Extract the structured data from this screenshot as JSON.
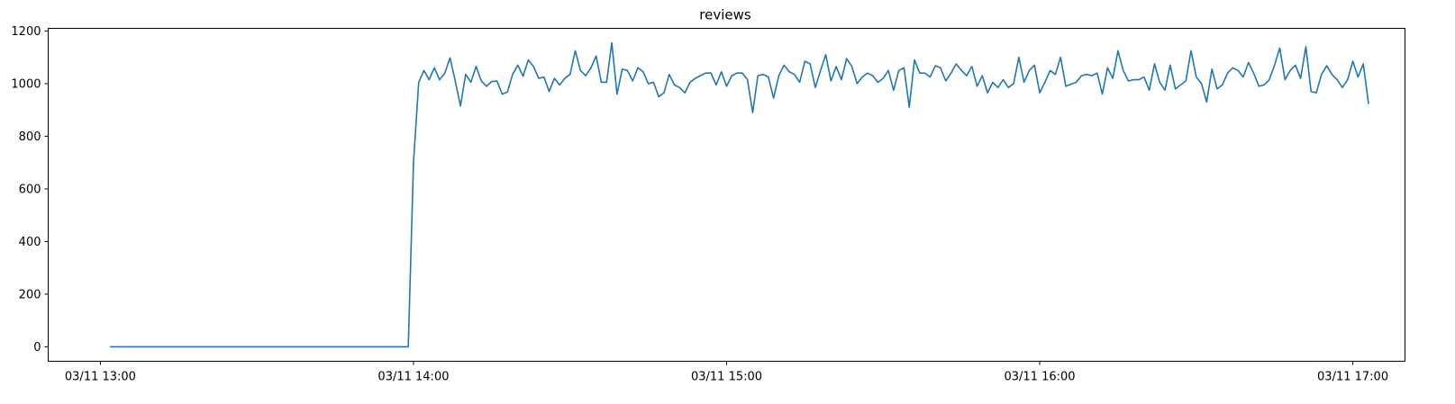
{
  "chart_data": {
    "type": "line",
    "title": "reviews",
    "xlabel": "",
    "ylabel": "",
    "x_ticks": [
      "03/11 13:00",
      "03/11 14:00",
      "03/11 15:00",
      "03/11 16:00",
      "03/11 17:00"
    ],
    "x_tick_minutes": [
      0,
      60,
      120,
      180,
      240
    ],
    "xlim_minutes": [
      -10,
      250
    ],
    "x_start": "03/11 13:02",
    "x_step_minutes": 1,
    "y_ticks": [
      0,
      200,
      400,
      600,
      800,
      1000,
      1200
    ],
    "ylim": [
      -55,
      1210
    ],
    "grid": false,
    "line_color": "#1f77b4",
    "series": [
      {
        "values": [
          0,
          0,
          0,
          0,
          0,
          0,
          0,
          0,
          0,
          0,
          0,
          0,
          0,
          0,
          0,
          0,
          0,
          0,
          0,
          0,
          0,
          0,
          0,
          0,
          0,
          0,
          0,
          0,
          0,
          0,
          0,
          0,
          0,
          0,
          0,
          0,
          0,
          0,
          0,
          0,
          0,
          0,
          0,
          0,
          0,
          0,
          0,
          0,
          0,
          0,
          0,
          0,
          0,
          0,
          0,
          0,
          0,
          0,
          700,
          1005,
          1050,
          1015,
          1060,
          1015,
          1040,
          1098,
          1010,
          915,
          1035,
          1005,
          1065,
          1010,
          990,
          1008,
          1010,
          960,
          968,
          1035,
          1070,
          1028,
          1090,
          1065,
          1020,
          1025,
          970,
          1020,
          995,
          1020,
          1035,
          1125,
          1050,
          1030,
          1060,
          1105,
          1005,
          1005,
          1155,
          960,
          1055,
          1050,
          1010,
          1060,
          1045,
          1000,
          1005,
          950,
          965,
          1035,
          995,
          985,
          965,
          1005,
          1020,
          1030,
          1040,
          1040,
          995,
          1045,
          990,
          1030,
          1040,
          1040,
          1015,
          890,
          1030,
          1035,
          1025,
          945,
          1030,
          1070,
          1045,
          1035,
          1005,
          1085,
          1075,
          985,
          1050,
          1110,
          1010,
          1065,
          1015,
          1095,
          1065,
          1000,
          1025,
          1040,
          1030,
          1005,
          1020,
          1050,
          975,
          1050,
          1060,
          910,
          1090,
          1040,
          1040,
          1025,
          1068,
          1060,
          1010,
          1040,
          1075,
          1050,
          1030,
          1065,
          990,
          1030,
          965,
          1005,
          985,
          1015,
          985,
          1000,
          1100,
          1005,
          1050,
          1070,
          965,
          1005,
          1050,
          1035,
          1100,
          990,
          998,
          1005,
          1030,
          1035,
          1030,
          1040,
          960,
          1060,
          1020,
          1125,
          1050,
          1010,
          1015,
          1015,
          1025,
          975,
          1075,
          1005,
          975,
          1070,
          980,
          995,
          1010,
          1125,
          1025,
          1000,
          930,
          1055,
          980,
          995,
          1040,
          1060,
          1050,
          1025,
          1080,
          1040,
          990,
          995,
          1015,
          1070,
          1135,
          1015,
          1050,
          1070,
          1020,
          1140,
          970,
          965,
          1035,
          1068,
          1035,
          1015,
          985,
          1015,
          1085,
          1025,
          1075,
          925
        ]
      }
    ]
  }
}
